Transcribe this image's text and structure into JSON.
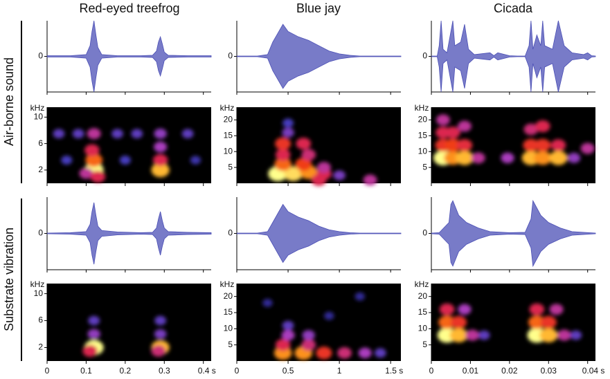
{
  "column_titles": [
    "Red-eyed treefrog",
    "Blue jay",
    "Cicada"
  ],
  "row_labels": [
    "Air-borne sound",
    "Substrate vibration"
  ],
  "chart_data": [
    {
      "type": "waveform",
      "color": "#4b4fb5",
      "xlim": [
        0,
        0.42
      ],
      "ylim": [
        -1,
        1
      ],
      "yticks": [
        0
      ],
      "x": [
        0,
        0.06,
        0.1,
        0.11,
        0.115,
        0.12,
        0.125,
        0.13,
        0.14,
        0.18,
        0.24,
        0.27,
        0.28,
        0.285,
        0.29,
        0.295,
        0.3,
        0.31,
        0.36,
        0.42
      ],
      "values": [
        0.02,
        0.02,
        0.05,
        0.3,
        0.7,
        1.0,
        0.6,
        0.25,
        0.05,
        0.02,
        0.02,
        0.03,
        0.15,
        0.4,
        0.55,
        0.35,
        0.12,
        0.03,
        0.02,
        0.02
      ]
    },
    {
      "type": "waveform",
      "color": "#4b4fb5",
      "xlim": [
        0,
        1.6
      ],
      "ylim": [
        -1,
        1
      ],
      "yticks": [
        0
      ],
      "x": [
        0,
        0.2,
        0.3,
        0.35,
        0.4,
        0.45,
        0.5,
        0.6,
        0.7,
        0.8,
        0.9,
        1.0,
        1.1,
        1.2,
        1.6
      ],
      "values": [
        0.01,
        0.01,
        0.05,
        0.4,
        0.65,
        0.9,
        0.7,
        0.55,
        0.45,
        0.3,
        0.15,
        0.07,
        0.03,
        0.01,
        0.01
      ]
    },
    {
      "type": "waveform",
      "color": "#4b4fb5",
      "xlim": [
        0,
        0.042
      ],
      "ylim": [
        -1,
        1
      ],
      "yticks": [
        0
      ],
      "x": [
        0,
        0.0015,
        0.002,
        0.0025,
        0.003,
        0.004,
        0.005,
        0.0055,
        0.006,
        0.0075,
        0.0085,
        0.0095,
        0.011,
        0.015,
        0.016,
        0.017,
        0.02,
        0.022,
        0.024,
        0.025,
        0.0255,
        0.026,
        0.027,
        0.028,
        0.0285,
        0.029,
        0.031,
        0.0325,
        0.034,
        0.036,
        0.039,
        0.04,
        0.041,
        0.042
      ],
      "values": [
        0.01,
        0.01,
        0.3,
        1.0,
        0.2,
        0.1,
        0.7,
        1.0,
        0.3,
        0.4,
        0.9,
        0.2,
        0.05,
        0.1,
        0.02,
        0.1,
        0.02,
        0.01,
        0.01,
        0.3,
        1.0,
        0.2,
        0.6,
        0.3,
        1.0,
        0.3,
        0.2,
        1.0,
        0.3,
        0.1,
        0.05,
        0.1,
        0.02,
        0.01
      ]
    },
    {
      "type": "spectrogram",
      "ylabel": "kHz",
      "xlim": [
        0,
        0.42
      ],
      "ylim": [
        0,
        11.5
      ],
      "yticks": [
        2,
        6,
        10
      ],
      "x": [
        0.12,
        0.12,
        0.115,
        0.12,
        0.1,
        0.13,
        0.29,
        0.29,
        0.29,
        0.29,
        0.03,
        0.08,
        0.18,
        0.23,
        0.36,
        0.05,
        0.2,
        0.38
      ],
      "values": [
        2,
        3.5,
        5,
        7.5,
        1.5,
        1,
        2,
        3.5,
        5.5,
        7.5,
        7.5,
        7.5,
        7.5,
        7.5,
        7.5,
        3.5,
        3.5,
        3.5
      ],
      "intensity": [
        1,
        0.8,
        0.6,
        0.5,
        0.5,
        0.6,
        0.9,
        0.6,
        0.45,
        0.4,
        0.3,
        0.3,
        0.3,
        0.3,
        0.3,
        0.25,
        0.25,
        0.2
      ]
    },
    {
      "type": "spectrogram",
      "ylabel": "kHz",
      "xlim": [
        0,
        1.6
      ],
      "ylim": [
        0,
        24
      ],
      "yticks": [
        5,
        10,
        15,
        20
      ],
      "x": [
        0.4,
        0.55,
        0.7,
        0.85,
        0.45,
        0.65,
        0.85,
        0.45,
        0.7,
        0.45,
        0.65,
        0.5,
        0.5,
        1.0,
        0.8,
        1.3
      ],
      "values": [
        3,
        3,
        3.5,
        3,
        6,
        6,
        5,
        9,
        9,
        12.5,
        12.5,
        16,
        19,
        2.5,
        1,
        1
      ],
      "intensity": [
        1,
        0.95,
        0.85,
        0.6,
        0.8,
        0.75,
        0.5,
        0.6,
        0.55,
        0.7,
        0.6,
        0.35,
        0.25,
        0.35,
        0.6,
        0.5
      ]
    },
    {
      "type": "spectrogram",
      "ylabel": "kHz",
      "xlim": [
        0,
        0.042
      ],
      "ylim": [
        0,
        24
      ],
      "yticks": [
        5,
        10,
        15,
        20
      ],
      "x": [
        0.003,
        0.003,
        0.003,
        0.003,
        0.0055,
        0.0055,
        0.0055,
        0.0085,
        0.0085,
        0.0085,
        0.012,
        0.0195,
        0.0255,
        0.0255,
        0.0255,
        0.0285,
        0.0285,
        0.0285,
        0.0325,
        0.0325,
        0.0365,
        0.04
      ],
      "values": [
        8,
        12,
        16,
        20,
        8,
        12,
        16,
        8,
        12,
        18,
        8,
        8,
        8,
        12,
        17,
        8,
        12,
        18,
        8,
        12,
        8,
        11
      ],
      "intensity": [
        1,
        0.7,
        0.6,
        0.5,
        0.85,
        0.75,
        0.6,
        0.9,
        0.65,
        0.5,
        0.5,
        0.45,
        0.9,
        0.7,
        0.55,
        0.85,
        0.7,
        0.6,
        0.9,
        0.6,
        0.4,
        0.5
      ]
    },
    {
      "type": "waveform",
      "color": "#4b4fb5",
      "xlim": [
        0,
        0.42
      ],
      "ylim": [
        -1,
        1
      ],
      "yticks": [
        0
      ],
      "x": [
        0,
        0.06,
        0.1,
        0.11,
        0.115,
        0.12,
        0.125,
        0.13,
        0.14,
        0.18,
        0.24,
        0.27,
        0.28,
        0.285,
        0.29,
        0.295,
        0.3,
        0.31,
        0.36,
        0.42
      ],
      "values": [
        0.01,
        0.02,
        0.05,
        0.25,
        0.6,
        0.85,
        0.5,
        0.2,
        0.08,
        0.04,
        0.02,
        0.03,
        0.15,
        0.4,
        0.6,
        0.35,
        0.15,
        0.05,
        0.03,
        0.02
      ]
    },
    {
      "type": "waveform",
      "color": "#4b4fb5",
      "xlim": [
        0,
        1.6
      ],
      "ylim": [
        -1,
        1
      ],
      "yticks": [
        0
      ],
      "x": [
        0,
        0.2,
        0.3,
        0.35,
        0.4,
        0.45,
        0.5,
        0.6,
        0.7,
        0.8,
        0.9,
        1.0,
        1.1,
        1.2,
        1.6
      ],
      "values": [
        0.01,
        0.01,
        0.05,
        0.3,
        0.55,
        0.8,
        0.6,
        0.45,
        0.35,
        0.2,
        0.1,
        0.05,
        0.02,
        0.01,
        0.01
      ]
    },
    {
      "type": "waveform",
      "color": "#4b4fb5",
      "xlim": [
        0,
        0.042
      ],
      "ylim": [
        -1,
        1
      ],
      "yticks": [
        0
      ],
      "x": [
        0,
        0.002,
        0.0045,
        0.005,
        0.0055,
        0.007,
        0.009,
        0.012,
        0.015,
        0.02,
        0.024,
        0.0255,
        0.026,
        0.0265,
        0.028,
        0.03,
        0.033,
        0.036,
        0.042
      ],
      "values": [
        0.01,
        0.02,
        0.3,
        0.8,
        0.9,
        0.5,
        0.3,
        0.15,
        0.05,
        0.02,
        0.03,
        0.4,
        0.9,
        0.8,
        0.5,
        0.3,
        0.15,
        0.05,
        0.01
      ]
    },
    {
      "type": "spectrogram",
      "ylabel": "kHz",
      "xlim": [
        0,
        0.42
      ],
      "ylim": [
        0,
        11.5
      ],
      "yticks": [
        2,
        6,
        10
      ],
      "xticks": [
        0,
        0.1,
        0.2,
        0.3,
        {
          "value": 0.4,
          "label": "0.4 s"
        }
      ],
      "x": [
        0.12,
        0.11,
        0.12,
        0.12,
        0.29,
        0.285,
        0.29,
        0.29
      ],
      "values": [
        2,
        1.5,
        4,
        6,
        2,
        1.5,
        4,
        6
      ],
      "intensity": [
        1,
        0.6,
        0.4,
        0.3,
        0.9,
        0.55,
        0.35,
        0.3
      ]
    },
    {
      "type": "spectrogram",
      "ylabel": "kHz",
      "xlim": [
        0,
        1.6
      ],
      "ylim": [
        0,
        24
      ],
      "yticks": [
        5,
        10,
        15,
        20
      ],
      "xticks": [
        0,
        0.5,
        1,
        {
          "value": 1.5,
          "label": "1.5 s"
        }
      ],
      "x": [
        0.45,
        0.65,
        0.85,
        1.05,
        1.25,
        1.4,
        0.45,
        0.7,
        0.5,
        0.7,
        0.5,
        0.9,
        0.3,
        1.2
      ],
      "values": [
        2.5,
        2.5,
        2.5,
        2.5,
        2.5,
        2.5,
        5,
        5,
        8,
        8,
        11,
        14,
        18,
        20
      ],
      "intensity": [
        0.85,
        0.85,
        0.7,
        0.55,
        0.45,
        0.3,
        0.6,
        0.55,
        0.45,
        0.4,
        0.3,
        0.15,
        0.15,
        0.15
      ]
    },
    {
      "type": "spectrogram",
      "ylabel": "kHz",
      "xlim": [
        0,
        0.042
      ],
      "ylim": [
        0,
        24
      ],
      "yticks": [
        5,
        10,
        15,
        20
      ],
      "xticks": [
        0,
        0.01,
        0.02,
        0.03,
        {
          "value": 0.04,
          "label": "0.04 s"
        }
      ],
      "x": [
        0.004,
        0.004,
        0.004,
        0.007,
        0.007,
        0.0085,
        0.0105,
        0.0135,
        0.027,
        0.027,
        0.027,
        0.03,
        0.03,
        0.032,
        0.034,
        0.037
      ],
      "values": [
        8,
        12,
        16,
        8,
        12,
        16,
        8,
        8,
        8,
        12,
        16,
        8,
        12,
        16,
        8,
        8
      ],
      "intensity": [
        1,
        0.8,
        0.6,
        0.9,
        0.7,
        0.45,
        0.5,
        0.3,
        1,
        0.8,
        0.6,
        0.9,
        0.7,
        0.5,
        0.5,
        0.3
      ]
    }
  ]
}
